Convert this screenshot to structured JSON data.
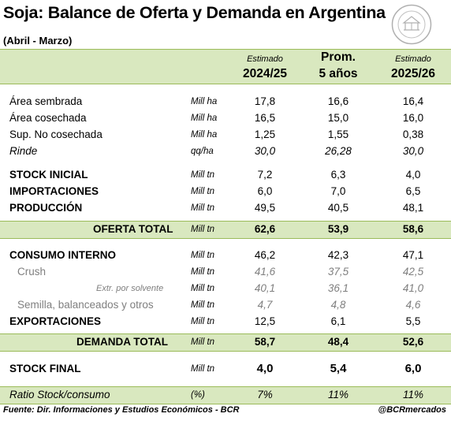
{
  "title": "Soja: Balance de Oferta y Demanda en Argentina",
  "subtitle": "(Abril - Marzo)",
  "seal_text": "BOLSA DE COMERCIO DE ROSARIO",
  "headers": [
    {
      "top": "Estimado",
      "bottom": "2024/25"
    },
    {
      "top": "Prom.",
      "bottom": "5 años"
    },
    {
      "top": "Estimado",
      "bottom": "2025/26"
    }
  ],
  "rows": [
    {
      "label": "Área sembrada",
      "unit": "Mill ha",
      "v": [
        "17,8",
        "16,6",
        "16,4"
      ]
    },
    {
      "label": "Área cosechada",
      "unit": "Mill ha",
      "v": [
        "16,5",
        "15,0",
        "16,0"
      ]
    },
    {
      "label": "Sup. No cosechada",
      "unit": "Mill ha",
      "v": [
        "1,25",
        "1,55",
        "0,38"
      ]
    },
    {
      "label": "Rinde",
      "unit": "qq/ha",
      "v": [
        "30,0",
        "26,28",
        "30,0"
      ]
    },
    {
      "label": "STOCK INICIAL",
      "unit": "Mill tn",
      "v": [
        "7,2",
        "6,3",
        "4,0"
      ]
    },
    {
      "label": "IMPORTACIONES",
      "unit": "Mill tn",
      "v": [
        "6,0",
        "7,0",
        "6,5"
      ]
    },
    {
      "label": "PRODUCCIÓN",
      "unit": "Mill tn",
      "v": [
        "49,5",
        "40,5",
        "48,1"
      ]
    },
    {
      "label": "OFERTA TOTAL",
      "unit": "Mill tn",
      "v": [
        "62,6",
        "53,9",
        "58,6"
      ]
    },
    {
      "label": "CONSUMO INTERNO",
      "unit": "Mill tn",
      "v": [
        "46,2",
        "42,3",
        "47,1"
      ]
    },
    {
      "label": "Crush",
      "unit": "Mill tn",
      "v": [
        "41,6",
        "37,5",
        "42,5"
      ]
    },
    {
      "label": "Extr. por solvente",
      "unit": "Mill tn",
      "v": [
        "40,1",
        "36,1",
        "41,0"
      ]
    },
    {
      "label": "Semilla, balanceados y otros",
      "unit": "Mill tn",
      "v": [
        "4,7",
        "4,8",
        "4,6"
      ]
    },
    {
      "label": "EXPORTACIONES",
      "unit": "Mill tn",
      "v": [
        "12,5",
        "6,1",
        "5,5"
      ]
    },
    {
      "label": "DEMANDA TOTAL",
      "unit": "Mill tn",
      "v": [
        "58,7",
        "48,4",
        "52,6"
      ]
    },
    {
      "label": "STOCK FINAL",
      "unit": "Mill tn",
      "v": [
        "4,0",
        "5,4",
        "6,0"
      ]
    },
    {
      "label": "Ratio Stock/consumo",
      "unit": "(%)",
      "v": [
        "7%",
        "11%",
        "11%"
      ]
    }
  ],
  "footer": {
    "source": "Fuente: Dir. Informaciones y Estudios Económicos - BCR",
    "handle": "@BCRmercados"
  },
  "colors": {
    "band": "#d9e8bf",
    "rule": "#9bbb59",
    "grey_text": "#7f7f7f"
  }
}
